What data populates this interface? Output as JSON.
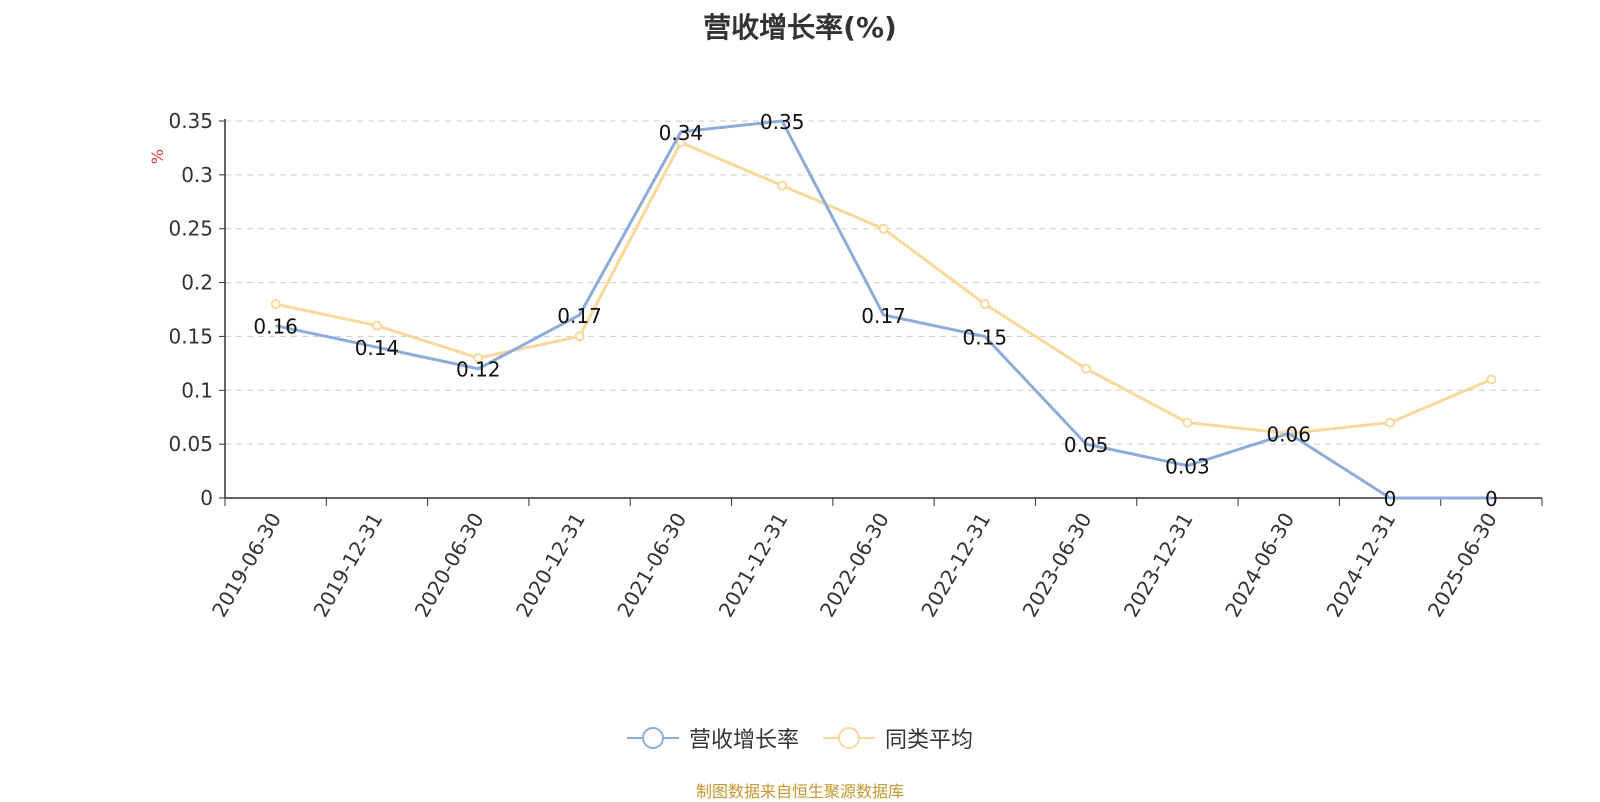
{
  "title": "营收增长率(%)",
  "source_note": "制图数据来自恒生聚源数据库",
  "colors": {
    "series1": "#8eacd9",
    "series2": "#fad79b",
    "axis": "#333333",
    "grid": "#cccccc",
    "unit": "#e83a3a",
    "source": "#c8962e"
  },
  "chart_data": {
    "type": "line",
    "title": "营收增长率(%)",
    "ylabel": "%",
    "xlabel": "",
    "ylim": [
      0,
      0.35
    ],
    "yticks": [
      0,
      0.05,
      0.1,
      0.15,
      0.2,
      0.25,
      0.3,
      0.35
    ],
    "ytick_labels": [
      "0",
      "0.05",
      "0.1",
      "0.15",
      "0.2",
      "0.25",
      "0.3",
      "0.35"
    ],
    "grid": true,
    "legend_position": "bottom-center",
    "categories": [
      "2019-06-30",
      "2019-12-31",
      "2020-06-30",
      "2020-12-31",
      "2021-06-30",
      "2021-12-31",
      "2022-06-30",
      "2022-12-31",
      "2023-06-30",
      "2023-12-31",
      "2024-06-30",
      "2024-12-31",
      "2025-06-30"
    ],
    "series": [
      {
        "name": "营收增长率",
        "values": [
          0.16,
          0.14,
          0.12,
          0.17,
          0.34,
          0.35,
          0.17,
          0.15,
          0.05,
          0.03,
          0.06,
          0,
          0
        ],
        "data_labels": [
          "0.16",
          "0.14",
          "0.12",
          "0.17",
          "0.34",
          "0.35",
          "0.17",
          "0.15",
          "0.05",
          "0.03",
          "0.06",
          "0",
          "0"
        ],
        "show_markers": false
      },
      {
        "name": "同类平均",
        "values": [
          0.18,
          0.16,
          0.13,
          0.15,
          0.33,
          0.29,
          0.25,
          0.18,
          0.12,
          0.07,
          0.06,
          0.07,
          0.11
        ],
        "show_markers": true
      }
    ]
  }
}
